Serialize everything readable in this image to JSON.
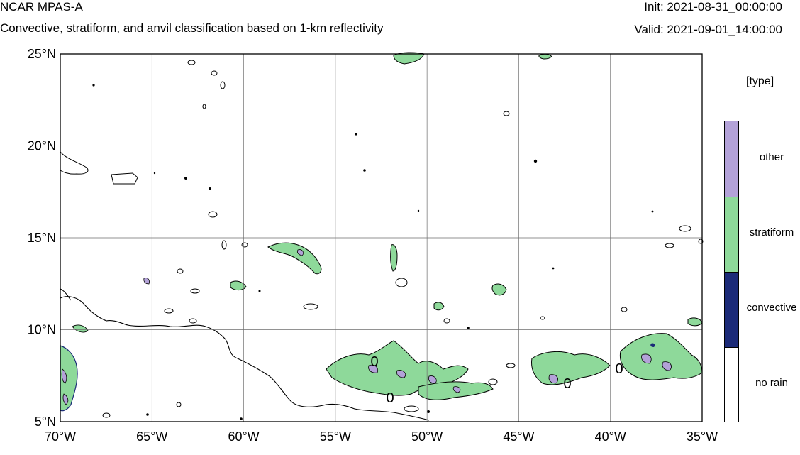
{
  "header": {
    "model": "NCAR MPAS-A",
    "subtitle": "Convective, stratiform, and anvil classification based on 1-km reflectivity",
    "init": "Init: 2021-08-31_00:00:00",
    "valid": "Valid: 2021-09-01_14:00:00"
  },
  "axes": {
    "lat_labels": [
      "25°N",
      "20°N",
      "15°N",
      "10°N",
      "5°N"
    ],
    "lon_labels": [
      "70°W",
      "65°W",
      "60°W",
      "55°W",
      "50°W",
      "45°W",
      "40°W",
      "35°W"
    ],
    "lat_values": [
      25,
      20,
      15,
      10,
      5
    ],
    "lon_values": [
      -70,
      -65,
      -60,
      -55,
      -50,
      -45,
      -40,
      -35
    ],
    "lat_range": [
      5,
      25
    ],
    "lon_range": [
      -70,
      -35
    ],
    "grid": true
  },
  "legend": {
    "title": "[type]",
    "categories": [
      {
        "label": "other",
        "color": "#b3a2d8"
      },
      {
        "label": "stratiform",
        "color": "#8ed99a"
      },
      {
        "label": "convective",
        "color": "#1b2a78"
      },
      {
        "label": "no rain",
        "color": "#ffffff"
      }
    ]
  },
  "contour_labels": [
    "0",
    "0",
    "0",
    "0"
  ],
  "colors": {
    "other": "#b3a2d8",
    "stratiform": "#8ed99a",
    "convective": "#1b2a78",
    "coast": "#000000",
    "grid": "#6e6e6e"
  }
}
